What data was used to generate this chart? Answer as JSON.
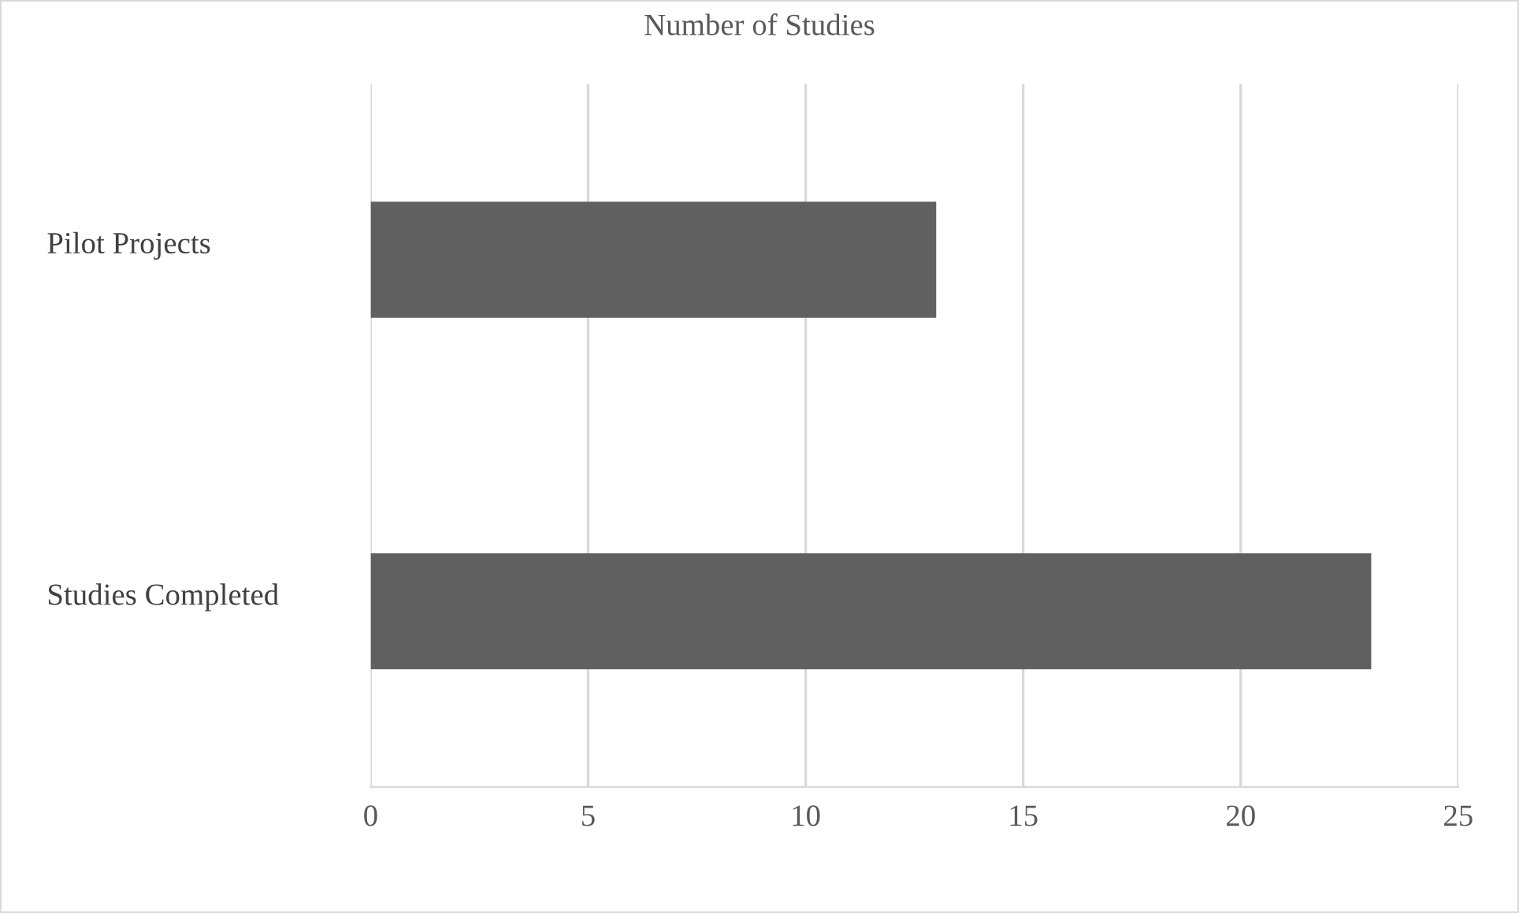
{
  "chart_data": {
    "type": "bar",
    "title": "Number of Studies",
    "orientation": "horizontal",
    "categories": [
      "Pilot Projects",
      "Studies Completed"
    ],
    "values": [
      13,
      23
    ],
    "color": "#606060",
    "xlim": [
      0,
      25
    ],
    "xticks": [
      0,
      5,
      10,
      15,
      20,
      25
    ],
    "grid": "x",
    "legend": false
  }
}
